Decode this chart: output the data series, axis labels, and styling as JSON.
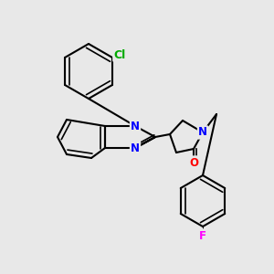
{
  "background_color": "#e8e8e8",
  "bond_color": "#000000",
  "bond_width": 1.5,
  "atom_colors": {
    "N": "#0000ff",
    "O": "#ff0000",
    "Cl": "#00aa00",
    "F": "#ff00ff"
  },
  "font_size": 8.5
}
